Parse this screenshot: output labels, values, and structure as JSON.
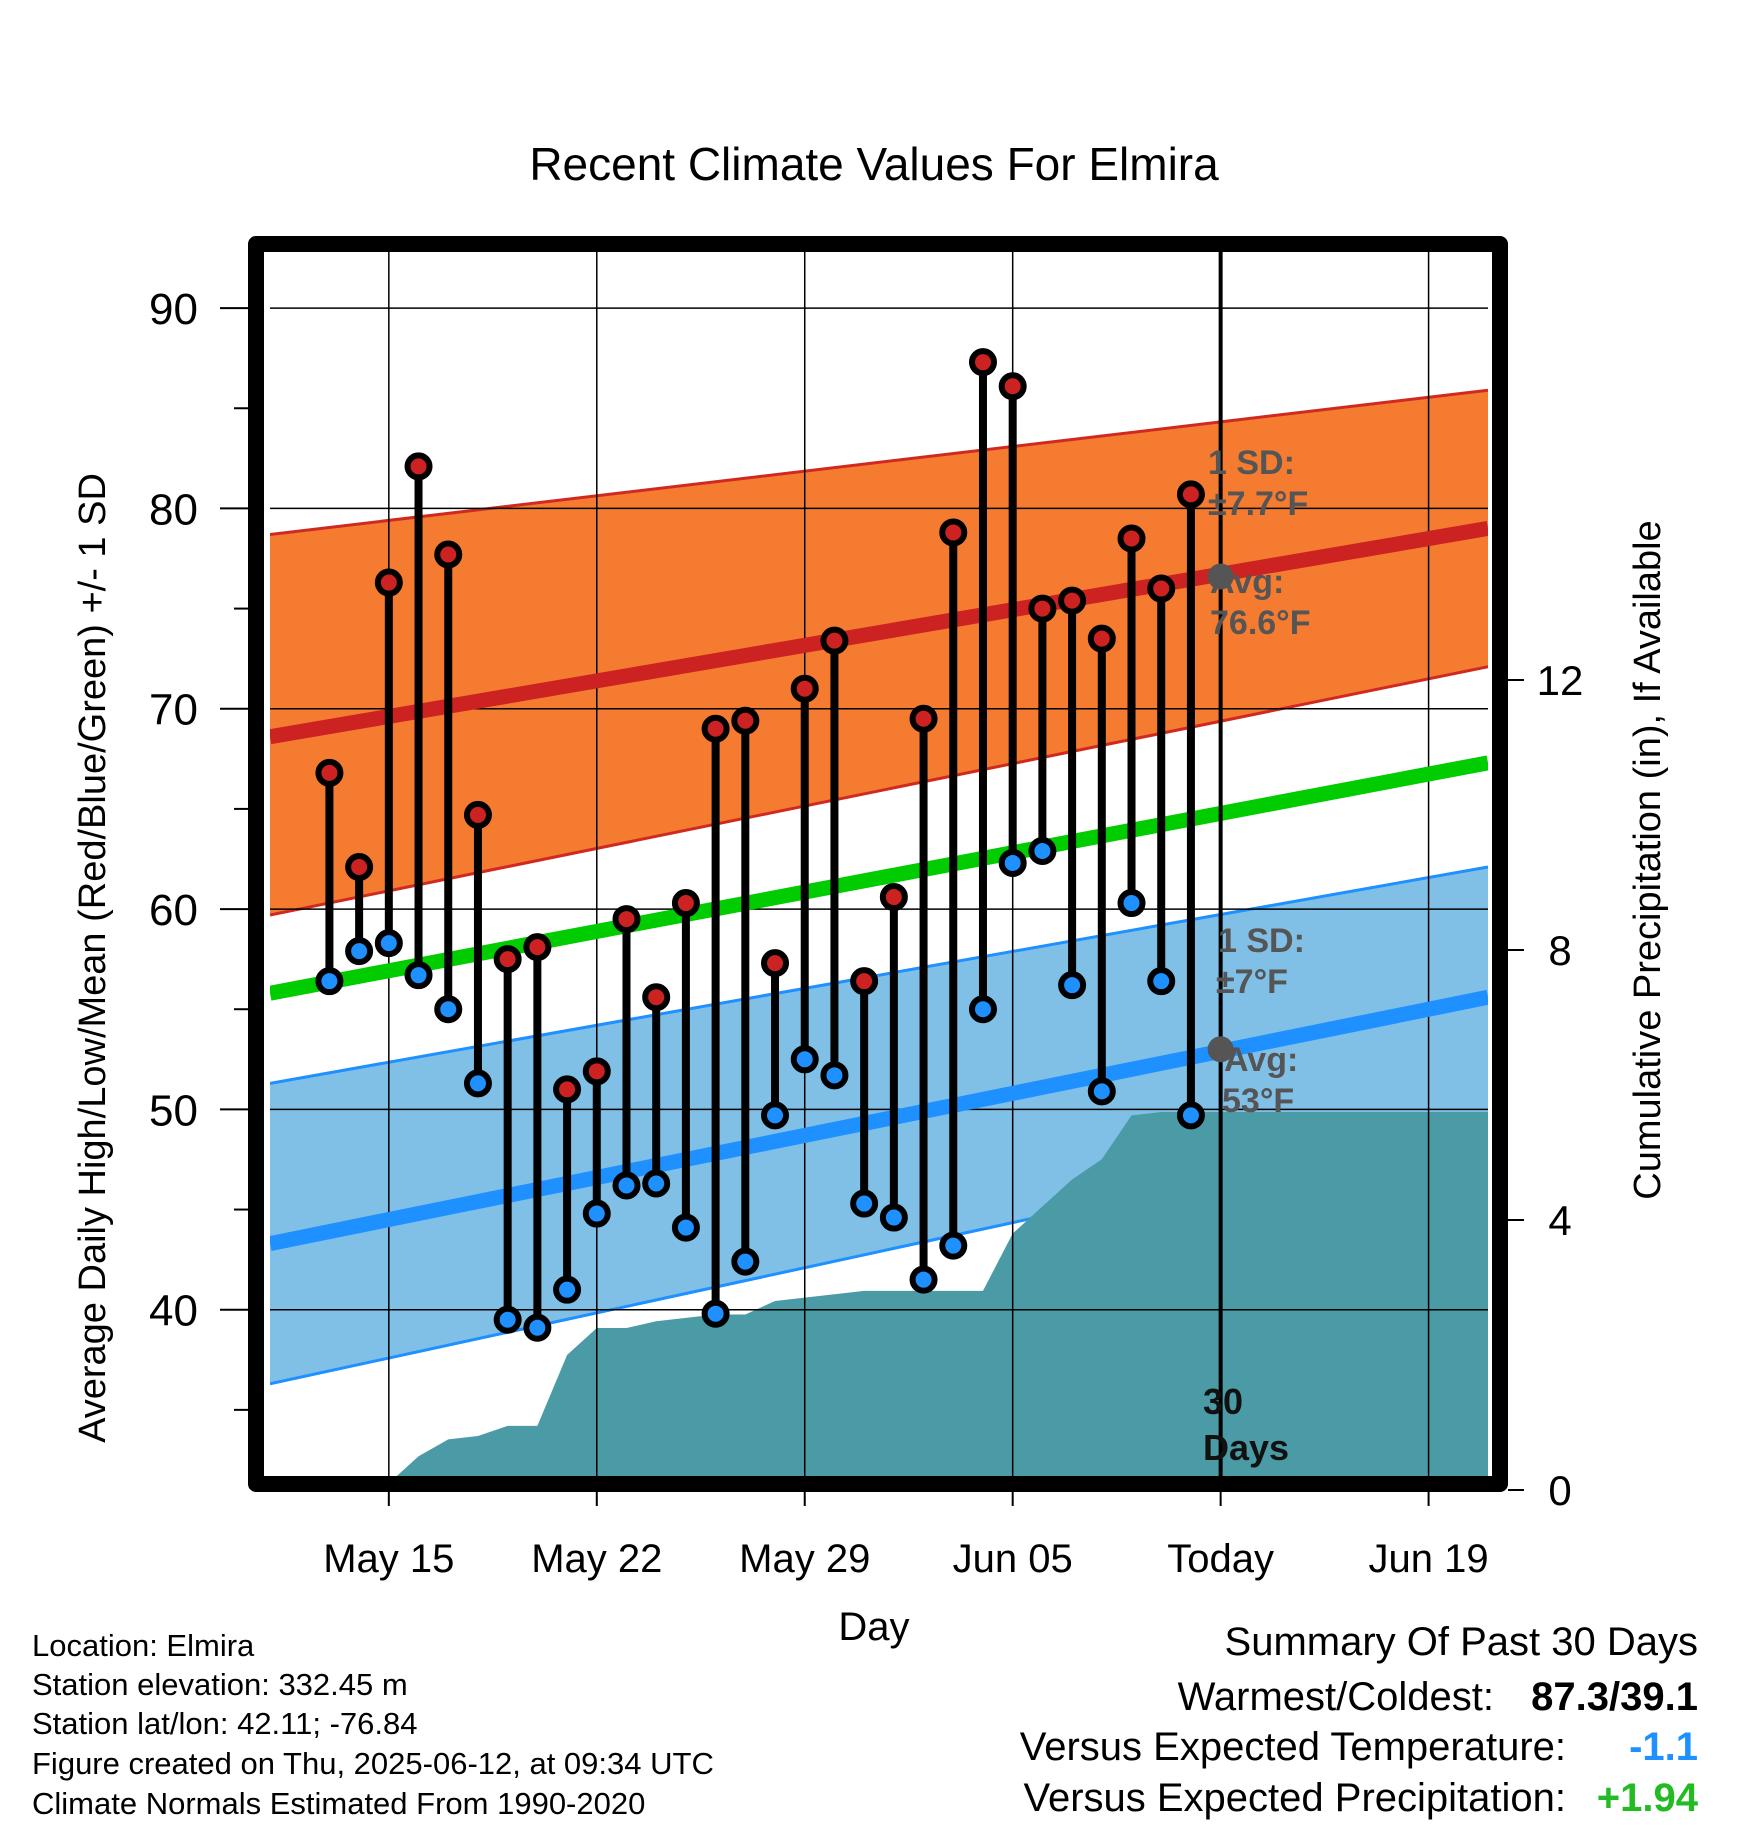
{
  "title": "Recent Climate Values For Elmira",
  "colors": {
    "high_band": "#f47b30",
    "high_band_edge": "#d02a20",
    "high_avg": "#cc2222",
    "low_band": "#80bfe6",
    "low_band_edge": "#1e90ff",
    "low_avg": "#1e90ff",
    "mean_line": "#00cc00",
    "precip": "#4a9ba5",
    "high_dot": "#cc2222",
    "low_dot": "#1e90ff",
    "annotation": "#555555",
    "summary_temp": "#1e90ff",
    "summary_precip": "#22bb22"
  },
  "chart_data": {
    "type": "line",
    "title": "Recent Climate Values For Elmira",
    "xlabel": "Day",
    "ylabel": "Average Daily High/Low/Mean (Red/Blue/Green) +/- 1 SD",
    "y2label": "Cumulative Precipitation (in), If Available",
    "ylim": [
      31,
      93
    ],
    "y2lim": [
      0,
      18.4
    ],
    "yticks": [
      40,
      50,
      60,
      70,
      80,
      90
    ],
    "y2ticks": [
      0,
      4,
      8,
      12
    ],
    "xlim": [
      "2025-05-11",
      "2025-06-21"
    ],
    "xtick_labels": [
      "May 15",
      "May 22",
      "May 29",
      "Jun 05",
      "Today",
      "Jun 19"
    ],
    "xtick_dates": [
      "2025-05-15",
      "2025-05-22",
      "2025-05-29",
      "2025-06-05",
      "2025-06-12",
      "2025-06-19"
    ],
    "grid": true,
    "dates": [
      "2025-05-13",
      "2025-05-14",
      "2025-05-15",
      "2025-05-16",
      "2025-05-17",
      "2025-05-18",
      "2025-05-19",
      "2025-05-20",
      "2025-05-21",
      "2025-05-22",
      "2025-05-23",
      "2025-05-24",
      "2025-05-25",
      "2025-05-26",
      "2025-05-27",
      "2025-05-28",
      "2025-05-29",
      "2025-05-30",
      "2025-05-31",
      "2025-06-01",
      "2025-06-02",
      "2025-06-03",
      "2025-06-04",
      "2025-06-05",
      "2025-06-06",
      "2025-06-07",
      "2025-06-08",
      "2025-06-09",
      "2025-06-10",
      "2025-06-11"
    ],
    "series": [
      {
        "name": "Daily High",
        "values": [
          66.8,
          62.1,
          76.3,
          82.1,
          77.7,
          64.7,
          57.5,
          58.1,
          51.0,
          51.9,
          59.5,
          55.6,
          60.3,
          69.0,
          69.4,
          57.3,
          71.0,
          73.4,
          56.4,
          60.6,
          69.5,
          78.8,
          87.3,
          86.1,
          75.0,
          75.4,
          73.5,
          78.5,
          76.0,
          80.7
        ]
      },
      {
        "name": "Daily Low",
        "values": [
          56.4,
          57.9,
          58.3,
          56.7,
          55.0,
          51.3,
          39.5,
          39.1,
          41.0,
          44.8,
          46.2,
          46.3,
          44.1,
          39.8,
          42.4,
          49.7,
          52.5,
          51.7,
          45.3,
          44.6,
          41.5,
          43.2,
          55.0,
          62.3,
          62.9,
          56.2,
          50.9,
          60.3,
          56.4,
          49.7
        ]
      },
      {
        "name": "Average High",
        "start": [
          "2025-05-11",
          68.6
        ],
        "end": [
          "2025-06-21",
          79.0
        ]
      },
      {
        "name": "Average High +1 SD",
        "start": [
          "2025-05-11",
          78.7
        ],
        "end": [
          "2025-06-21",
          85.9
        ]
      },
      {
        "name": "Average High -1 SD",
        "start": [
          "2025-05-11",
          59.7
        ],
        "end": [
          "2025-06-21",
          72.1
        ]
      },
      {
        "name": "Average Mean",
        "start": [
          "2025-05-11",
          55.8
        ],
        "end": [
          "2025-06-21",
          67.3
        ]
      },
      {
        "name": "Average Low",
        "start": [
          "2025-05-11",
          43.3
        ],
        "end": [
          "2025-06-21",
          55.6
        ]
      },
      {
        "name": "Average Low +1 SD",
        "start": [
          "2025-05-11",
          51.3
        ],
        "end": [
          "2025-06-21",
          62.1
        ]
      },
      {
        "name": "Average Low -1 SD",
        "start": [
          "2025-05-11",
          36.3
        ],
        "end": [
          "2025-06-21",
          49.5
        ]
      },
      {
        "name": "Cumulative Precipitation",
        "points": [
          [
            "2025-05-13",
            0.0
          ],
          [
            "2025-05-14",
            0.0
          ],
          [
            "2025-05-15",
            0.1
          ],
          [
            "2025-05-16",
            0.5
          ],
          [
            "2025-05-17",
            0.75
          ],
          [
            "2025-05-18",
            0.8
          ],
          [
            "2025-05-19",
            0.95
          ],
          [
            "2025-05-20",
            0.95
          ],
          [
            "2025-05-21",
            2.0
          ],
          [
            "2025-05-22",
            2.4
          ],
          [
            "2025-05-23",
            2.4
          ],
          [
            "2025-05-24",
            2.5
          ],
          [
            "2025-05-25",
            2.55
          ],
          [
            "2025-05-26",
            2.6
          ],
          [
            "2025-05-27",
            2.6
          ],
          [
            "2025-05-28",
            2.8
          ],
          [
            "2025-05-29",
            2.85
          ],
          [
            "2025-05-30",
            2.9
          ],
          [
            "2025-05-31",
            2.95
          ],
          [
            "2025-06-01",
            2.95
          ],
          [
            "2025-06-02",
            2.95
          ],
          [
            "2025-06-03",
            2.95
          ],
          [
            "2025-06-04",
            2.95
          ],
          [
            "2025-06-05",
            3.8
          ],
          [
            "2025-06-06",
            4.2
          ],
          [
            "2025-06-07",
            4.6
          ],
          [
            "2025-06-08",
            4.9
          ],
          [
            "2025-06-09",
            5.55
          ],
          [
            "2025-06-10",
            5.6
          ],
          [
            "2025-06-11",
            5.6
          ],
          [
            "2025-06-12",
            5.6
          ],
          [
            "2025-06-21",
            5.6
          ]
        ]
      }
    ],
    "today": "2025-06-12",
    "today_avg_high": 76.6,
    "today_avg_low": 53,
    "annotations": {
      "high_sd_label": "1 SD:",
      "high_sd_value": "±7.7°F",
      "high_avg_label": "Avg:",
      "high_avg_value": "76.6°F",
      "low_sd_label": "1 SD:",
      "low_sd_value": "±7°F",
      "low_avg_label": "Avg:",
      "low_avg_value": "53°F",
      "days_line1": "30",
      "days_line2": "Days"
    }
  },
  "footer": {
    "location": "Location: Elmira",
    "elevation": "Station elevation: 332.45 m",
    "latlon": "Station lat/lon: 42.11; -76.84",
    "created": "Figure created on Thu, 2025-06-12, at 09:34 UTC",
    "normals": "Climate Normals Estimated From 1990-2020"
  },
  "summary": {
    "heading": "Summary Of Past 30 Days",
    "warmest_label": "Warmest/Coldest:",
    "warmest_value": "87.3/39.1",
    "temp_label": "Versus Expected Temperature:",
    "temp_value": "-1.1",
    "precip_label": "Versus Expected Precipitation:",
    "precip_value": "+1.94"
  }
}
